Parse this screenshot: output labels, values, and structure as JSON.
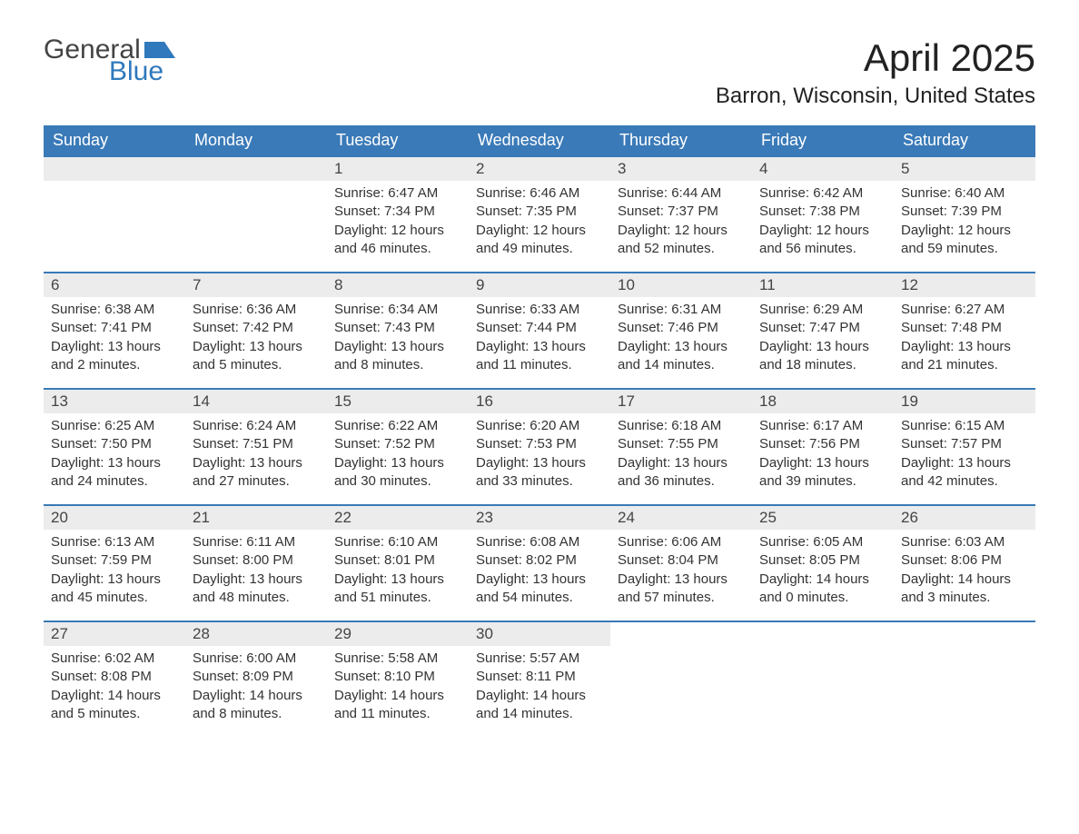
{
  "logo": {
    "word1": "General",
    "word2": "Blue"
  },
  "title": {
    "month": "April 2025",
    "location": "Barron, Wisconsin, United States"
  },
  "colors": {
    "header_bg": "#3a7ab8",
    "header_fg": "#ffffff",
    "daynum_bg": "#ececec",
    "row_border": "#3a7ab8",
    "logo_blue": "#2f79bc",
    "text": "#333333",
    "background": "#ffffff"
  },
  "day_names": [
    "Sunday",
    "Monday",
    "Tuesday",
    "Wednesday",
    "Thursday",
    "Friday",
    "Saturday"
  ],
  "weeks": [
    [
      {
        "blank": true
      },
      {
        "blank": true
      },
      {
        "n": "1",
        "sunrise": "6:47 AM",
        "sunset": "7:34 PM",
        "daylight": "12 hours and 46 minutes."
      },
      {
        "n": "2",
        "sunrise": "6:46 AM",
        "sunset": "7:35 PM",
        "daylight": "12 hours and 49 minutes."
      },
      {
        "n": "3",
        "sunrise": "6:44 AM",
        "sunset": "7:37 PM",
        "daylight": "12 hours and 52 minutes."
      },
      {
        "n": "4",
        "sunrise": "6:42 AM",
        "sunset": "7:38 PM",
        "daylight": "12 hours and 56 minutes."
      },
      {
        "n": "5",
        "sunrise": "6:40 AM",
        "sunset": "7:39 PM",
        "daylight": "12 hours and 59 minutes."
      }
    ],
    [
      {
        "n": "6",
        "sunrise": "6:38 AM",
        "sunset": "7:41 PM",
        "daylight": "13 hours and 2 minutes."
      },
      {
        "n": "7",
        "sunrise": "6:36 AM",
        "sunset": "7:42 PM",
        "daylight": "13 hours and 5 minutes."
      },
      {
        "n": "8",
        "sunrise": "6:34 AM",
        "sunset": "7:43 PM",
        "daylight": "13 hours and 8 minutes."
      },
      {
        "n": "9",
        "sunrise": "6:33 AM",
        "sunset": "7:44 PM",
        "daylight": "13 hours and 11 minutes."
      },
      {
        "n": "10",
        "sunrise": "6:31 AM",
        "sunset": "7:46 PM",
        "daylight": "13 hours and 14 minutes."
      },
      {
        "n": "11",
        "sunrise": "6:29 AM",
        "sunset": "7:47 PM",
        "daylight": "13 hours and 18 minutes."
      },
      {
        "n": "12",
        "sunrise": "6:27 AM",
        "sunset": "7:48 PM",
        "daylight": "13 hours and 21 minutes."
      }
    ],
    [
      {
        "n": "13",
        "sunrise": "6:25 AM",
        "sunset": "7:50 PM",
        "daylight": "13 hours and 24 minutes."
      },
      {
        "n": "14",
        "sunrise": "6:24 AM",
        "sunset": "7:51 PM",
        "daylight": "13 hours and 27 minutes."
      },
      {
        "n": "15",
        "sunrise": "6:22 AM",
        "sunset": "7:52 PM",
        "daylight": "13 hours and 30 minutes."
      },
      {
        "n": "16",
        "sunrise": "6:20 AM",
        "sunset": "7:53 PM",
        "daylight": "13 hours and 33 minutes."
      },
      {
        "n": "17",
        "sunrise": "6:18 AM",
        "sunset": "7:55 PM",
        "daylight": "13 hours and 36 minutes."
      },
      {
        "n": "18",
        "sunrise": "6:17 AM",
        "sunset": "7:56 PM",
        "daylight": "13 hours and 39 minutes."
      },
      {
        "n": "19",
        "sunrise": "6:15 AM",
        "sunset": "7:57 PM",
        "daylight": "13 hours and 42 minutes."
      }
    ],
    [
      {
        "n": "20",
        "sunrise": "6:13 AM",
        "sunset": "7:59 PM",
        "daylight": "13 hours and 45 minutes."
      },
      {
        "n": "21",
        "sunrise": "6:11 AM",
        "sunset": "8:00 PM",
        "daylight": "13 hours and 48 minutes."
      },
      {
        "n": "22",
        "sunrise": "6:10 AM",
        "sunset": "8:01 PM",
        "daylight": "13 hours and 51 minutes."
      },
      {
        "n": "23",
        "sunrise": "6:08 AM",
        "sunset": "8:02 PM",
        "daylight": "13 hours and 54 minutes."
      },
      {
        "n": "24",
        "sunrise": "6:06 AM",
        "sunset": "8:04 PM",
        "daylight": "13 hours and 57 minutes."
      },
      {
        "n": "25",
        "sunrise": "6:05 AM",
        "sunset": "8:05 PM",
        "daylight": "14 hours and 0 minutes."
      },
      {
        "n": "26",
        "sunrise": "6:03 AM",
        "sunset": "8:06 PM",
        "daylight": "14 hours and 3 minutes."
      }
    ],
    [
      {
        "n": "27",
        "sunrise": "6:02 AM",
        "sunset": "8:08 PM",
        "daylight": "14 hours and 5 minutes."
      },
      {
        "n": "28",
        "sunrise": "6:00 AM",
        "sunset": "8:09 PM",
        "daylight": "14 hours and 8 minutes."
      },
      {
        "n": "29",
        "sunrise": "5:58 AM",
        "sunset": "8:10 PM",
        "daylight": "14 hours and 11 minutes."
      },
      {
        "n": "30",
        "sunrise": "5:57 AM",
        "sunset": "8:11 PM",
        "daylight": "14 hours and 14 minutes."
      },
      {
        "blank": true
      },
      {
        "blank": true
      },
      {
        "blank": true
      }
    ]
  ],
  "labels": {
    "sunrise": "Sunrise: ",
    "sunset": "Sunset: ",
    "daylight": "Daylight: "
  }
}
